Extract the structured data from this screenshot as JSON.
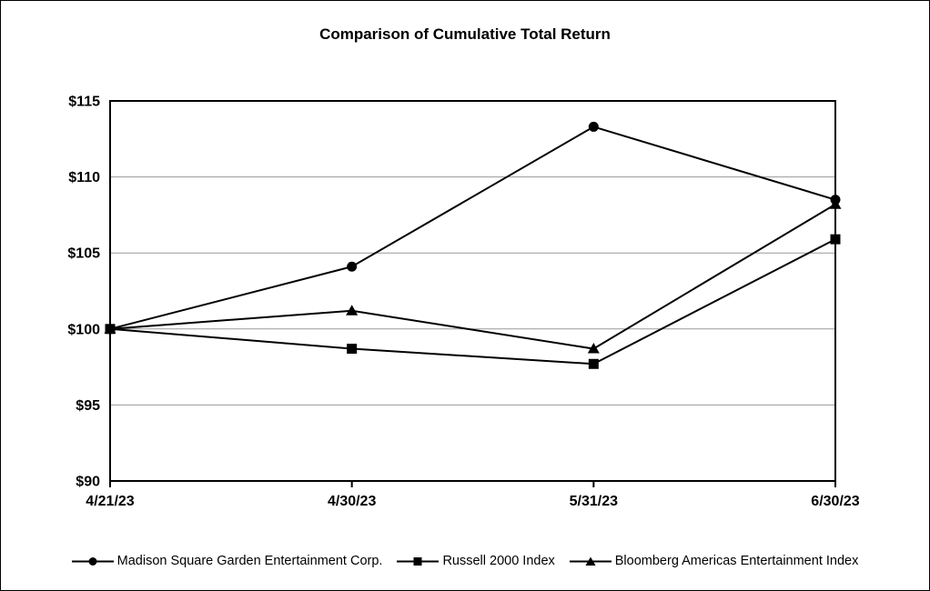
{
  "chart_data": {
    "type": "line",
    "title": "Comparison of Cumulative Total Return",
    "categories": [
      "4/21/23",
      "4/30/23",
      "5/31/23",
      "6/30/23"
    ],
    "series": [
      {
        "name": "Madison Square Garden Entertainment Corp.",
        "marker": "circle",
        "values": [
          100,
          104.1,
          113.3,
          108.5
        ]
      },
      {
        "name": "Russell 2000 Index",
        "marker": "square",
        "values": [
          100,
          98.7,
          97.7,
          105.9
        ]
      },
      {
        "name": "Bloomberg Americas Entertainment Index",
        "marker": "triangle",
        "values": [
          100,
          101.2,
          98.7,
          108.2
        ]
      }
    ],
    "xlabel": "",
    "ylabel": "",
    "ylim": [
      90,
      115
    ],
    "y_ticks": [
      90,
      95,
      100,
      105,
      110,
      115
    ],
    "y_tick_prefix": "$",
    "grid": "horizontal",
    "legend_position": "bottom",
    "colors": {
      "line": "#000000",
      "marker": "#000000",
      "gridline": "#999999",
      "frame": "#000000",
      "background": "#ffffff",
      "text": "#000000"
    }
  }
}
